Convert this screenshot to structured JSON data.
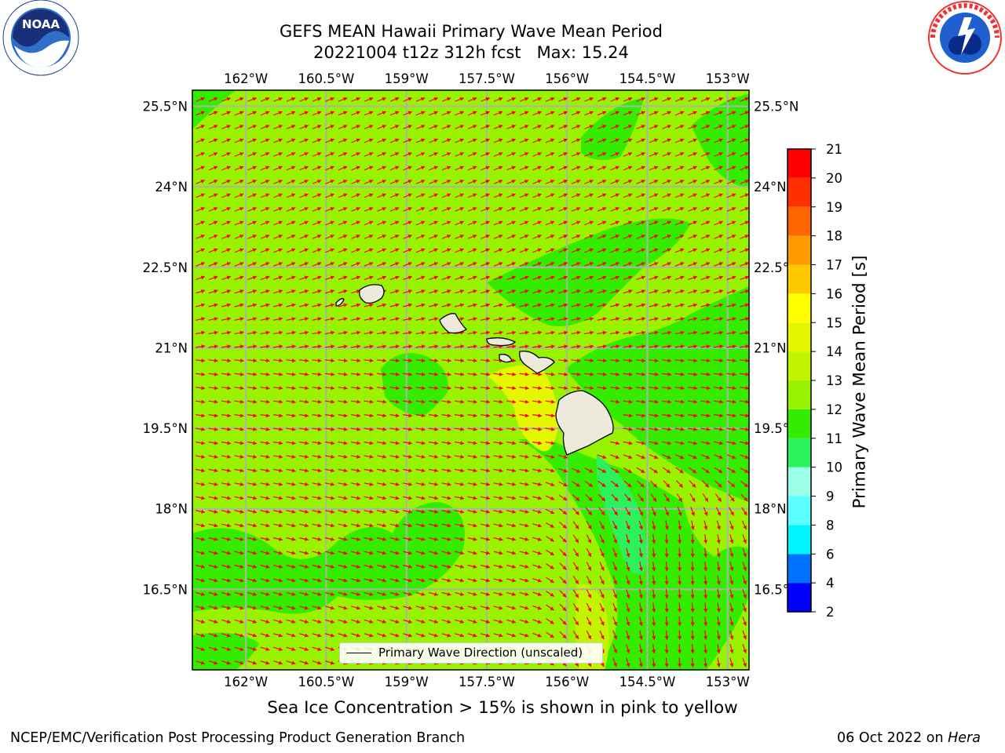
{
  "title": {
    "line1": "GEFS MEAN Hawaii Primary Wave Mean Period",
    "line2": "20221004 t12z 312h fcst   Max: 15.24"
  },
  "logos": {
    "left": "noaa-logo",
    "right": "national-weather-service-logo"
  },
  "map": {
    "lon_ticks": [
      "162°W",
      "160.5°W",
      "159°W",
      "157.5°W",
      "156°W",
      "154.5°W",
      "153°W"
    ],
    "lat_ticks": [
      "25.5°N",
      "24°N",
      "22.5°N",
      "21°N",
      "19.5°N",
      "18°N",
      "16.5°N"
    ],
    "lon_range": [
      -163,
      -152.6
    ],
    "lat_range": [
      15,
      25.8
    ],
    "legend": "Primary Wave Direction (unscaled)",
    "arrow_color": "#ff0000",
    "field_colors": {
      "period_12_13": "#98f300",
      "period_11_12": "#33ec00",
      "period_13_14": "#c2f400",
      "period_14_15": "#e4f600",
      "period_10_11": "#2bf15c"
    }
  },
  "colorbar": {
    "label": "Primary Wave Mean Period [s]",
    "ticks": [
      "2",
      "4",
      "6",
      "8",
      "9",
      "10",
      "11",
      "12",
      "13",
      "14",
      "15",
      "16",
      "17",
      "18",
      "19",
      "20",
      "21"
    ],
    "colors": [
      "#0000ff",
      "#0070ff",
      "#00f6ff",
      "#5cffff",
      "#9cffe8",
      "#2bf15c",
      "#33ec00",
      "#98f300",
      "#c2f400",
      "#e4f600",
      "#ffff00",
      "#ffc900",
      "#ff9a00",
      "#ff6500",
      "#ff3000",
      "#ff0000"
    ]
  },
  "note": "Sea Ice Concentration > 15% is shown in pink to yellow",
  "footer": {
    "left": "NCEP/EMC/Verification Post Processing Product Generation Branch",
    "right_date": "06 Oct 2022 on ",
    "right_machine": "Hera"
  }
}
